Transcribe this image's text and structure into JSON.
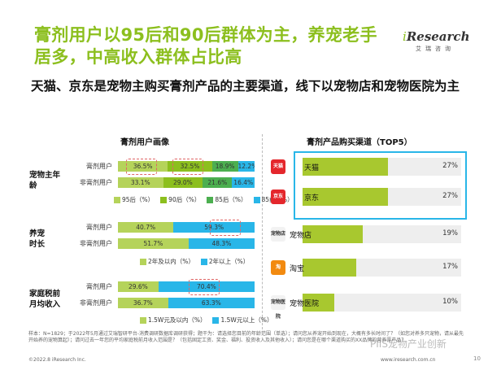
{
  "title": "膏剂用户以95后和90后群体为主，养宠老手居多，中高收入群体占比高",
  "logo": {
    "main_i": "i",
    "main_rest": "Research",
    "sub": "艾瑞咨询"
  },
  "subtitle": "天猫、京东是宠物主购买膏剂产品的主要渠道，线下以宠物店和宠物医院为主",
  "left_panel_title": "膏剂用户画像",
  "right_panel_title": "膏剂产品购买渠道（TOP5）",
  "colors": {
    "green_dark": "#8cbf1e",
    "green_light": "#b5d35a",
    "blue": "#29b6e8",
    "blue_light": "#6fd0f0",
    "gray": "#dcdcdc"
  },
  "chart_data": [
    {
      "type": "bar",
      "stacked": "horizontal-100%",
      "group": "宠物主年龄",
      "categories": [
        "膏剂用户",
        "非膏剂用户"
      ],
      "series": [
        {
          "name": "95后（%）",
          "values": [
            36.5,
            33.1
          ]
        },
        {
          "name": "90后（%）",
          "values": [
            32.5,
            29.0
          ]
        },
        {
          "name": "85后（%）",
          "values": [
            18.9,
            21.6
          ]
        },
        {
          "name": "85前（%）",
          "values": [
            12.2,
            16.4
          ]
        }
      ]
    },
    {
      "type": "bar",
      "stacked": "horizontal-100%",
      "group": "养宠时长",
      "categories": [
        "膏剂用户",
        "非膏剂用户"
      ],
      "series": [
        {
          "name": "2年及以内（%）",
          "values": [
            40.7,
            51.7
          ]
        },
        {
          "name": "2年以上（%）",
          "values": [
            59.3,
            48.3
          ]
        }
      ]
    },
    {
      "type": "bar",
      "stacked": "horizontal-100%",
      "group": "家庭税前月均收入",
      "categories": [
        "膏剂用户",
        "非膏剂用户"
      ],
      "series": [
        {
          "name": "1.5W元及以内（%）",
          "values": [
            29.6,
            36.7
          ]
        },
        {
          "name": "1.5W元以上（%）",
          "values": [
            70.4,
            63.3
          ]
        }
      ]
    },
    {
      "type": "bar",
      "title": "膏剂产品购买渠道（TOP5）",
      "categories": [
        "天猫",
        "京东",
        "宠物店",
        "淘宝",
        "宠物医院"
      ],
      "values": [
        27,
        27,
        19,
        17,
        10
      ],
      "value_suffix": "%",
      "xlim": [
        0,
        30
      ]
    }
  ],
  "labels": {
    "age_group": "宠物主年龄",
    "tenure_group": "养宠时长",
    "income_group": "家庭税前月均收入"
  },
  "channel_icons": [
    "天猫",
    "京东",
    "宠物店",
    "淘",
    "宠物医院"
  ],
  "note": "样本：N=1829；于2022年5月通过艾瑞智研平台-消费调研数据库调研获得；题干为：请选择您目前的年龄范围（单选）；请问您从养宠开始到现在，大概有多长时间了？（如您对养多只宠物，请从最先开始养的宠物算起）；请问过去一年您的平均家庭税前月收入范围是？（包括固定工资、奖金、福利、投资收入及其他收入）；请问您是在哪个渠道购买的XX品牌的营养膏产品？",
  "footer_left": "©2022.8 iResearch Inc.",
  "footer_right": "www.iresearch.com.cn",
  "page_num": "10",
  "watermark": "PIIS宠物产业创新"
}
